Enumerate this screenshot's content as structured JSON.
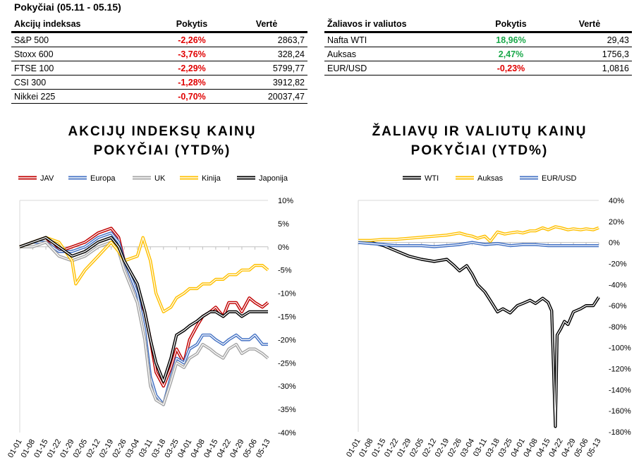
{
  "header": {
    "title": "Pokyčiai (05.11 - 05.15)"
  },
  "table_indices": {
    "columns": [
      "Akcijų indeksas",
      "Pokytis",
      "Vertė"
    ],
    "rows": [
      {
        "name": "S&P 500",
        "change": "-2,26%",
        "value": "2863,7",
        "sign": "neg"
      },
      {
        "name": "Stoxx 600",
        "change": "-3,76%",
        "value": "328,24",
        "sign": "neg"
      },
      {
        "name": "FTSE 100",
        "change": "-2,29%",
        "value": "5799,77",
        "sign": "neg"
      },
      {
        "name": "CSI 300",
        "change": "-1,28%",
        "value": "3912,82",
        "sign": "neg"
      },
      {
        "name": "Nikkei 225",
        "change": "-0,70%",
        "value": "20037,47",
        "sign": "neg"
      }
    ]
  },
  "table_commodities": {
    "columns": [
      "Žaliavos ir valiutos",
      "Pokytis",
      "Vertė"
    ],
    "rows": [
      {
        "name": "Nafta WTI",
        "change": "18,96%",
        "value": "29,43",
        "sign": "pos"
      },
      {
        "name": "Auksas",
        "change": "2,47%",
        "value": "1756,3",
        "sign": "pos"
      },
      {
        "name": "EUR/USD",
        "change": "-0,23%",
        "value": "1,0816",
        "sign": "neg"
      }
    ]
  },
  "chart_data": [
    {
      "type": "line",
      "title": "AKCIJŲ INDEKSŲ KAINŲ POKYČIAI (YTD%)",
      "title_lines": [
        "AKCIJŲ INDEKSŲ KAINŲ",
        "POKYČIAI (YTD%)"
      ],
      "ylim": [
        -40,
        10
      ],
      "yticks": [
        10,
        5,
        0,
        -5,
        -10,
        -15,
        -20,
        -25,
        -30,
        -35,
        -40
      ],
      "ytick_labels": [
        "10%",
        "5%",
        "0%",
        "-5%",
        "-10%",
        "-15%",
        "-20%",
        "-25%",
        "-30%",
        "-35%",
        "-40%"
      ],
      "xlim": [
        0,
        133
      ],
      "xticks": [
        0,
        7,
        14,
        21,
        28,
        35,
        42,
        49,
        56,
        63,
        70,
        77,
        84,
        91,
        98,
        105,
        112,
        119,
        126,
        133
      ],
      "xtick_labels": [
        "01-01",
        "01-08",
        "01-15",
        "01-22",
        "01-29",
        "02-05",
        "02-12",
        "02-19",
        "02-26",
        "03-04",
        "03-11",
        "03-18",
        "03-25",
        "04-01",
        "04-08",
        "04-15",
        "04-22",
        "04-29",
        "05-06",
        "05-13"
      ],
      "legend_position": "top",
      "series": [
        {
          "name": "JAV",
          "color": "#c00000",
          "x": [
            0,
            7,
            14,
            21,
            28,
            35,
            42,
            49,
            53,
            56,
            63,
            67,
            70,
            73,
            77,
            81,
            84,
            88,
            91,
            95,
            98,
            102,
            105,
            109,
            112,
            116,
            119,
            123,
            126,
            130,
            133
          ],
          "y": [
            0,
            1,
            2,
            -1,
            0,
            1,
            3,
            4,
            2,
            -3,
            -10,
            -14,
            -20,
            -27,
            -30,
            -26,
            -22,
            -25,
            -20,
            -17,
            -15,
            -14,
            -13,
            -15,
            -12,
            -12,
            -14,
            -11,
            -12,
            -13,
            -12
          ]
        },
        {
          "name": "Europa",
          "color": "#4472c4",
          "x": [
            0,
            7,
            14,
            21,
            28,
            35,
            42,
            49,
            53,
            56,
            63,
            67,
            70,
            73,
            77,
            81,
            84,
            88,
            91,
            95,
            98,
            102,
            105,
            109,
            112,
            116,
            119,
            123,
            126,
            130,
            133
          ],
          "y": [
            0,
            1,
            1,
            -1,
            -1,
            0,
            2,
            3,
            1,
            -3,
            -10,
            -18,
            -28,
            -32,
            -34,
            -28,
            -24,
            -25,
            -22,
            -21,
            -19,
            -19,
            -20,
            -21,
            -20,
            -19,
            -20,
            -20,
            -19,
            -21,
            -21
          ]
        },
        {
          "name": "UK",
          "color": "#a5a5a5",
          "x": [
            0,
            7,
            14,
            21,
            28,
            35,
            42,
            49,
            53,
            56,
            63,
            67,
            70,
            73,
            77,
            81,
            84,
            88,
            91,
            95,
            98,
            102,
            105,
            109,
            112,
            116,
            119,
            123,
            126,
            130,
            133
          ],
          "y": [
            0,
            0,
            1,
            -2,
            -3,
            -2,
            0,
            1,
            -1,
            -5,
            -12,
            -20,
            -30,
            -33,
            -34,
            -29,
            -25,
            -26,
            -24,
            -23,
            -21,
            -22,
            -23,
            -24,
            -22,
            -21,
            -23,
            -22,
            -22,
            -23,
            -24
          ]
        },
        {
          "name": "Kinija",
          "color": "#ffc000",
          "x": [
            0,
            7,
            14,
            21,
            28,
            30,
            35,
            42,
            49,
            53,
            56,
            63,
            66,
            70,
            73,
            77,
            81,
            84,
            88,
            91,
            95,
            98,
            102,
            105,
            109,
            112,
            116,
            119,
            123,
            126,
            130,
            133
          ],
          "y": [
            0,
            1,
            2,
            1,
            -3,
            -8,
            -5,
            -2,
            1,
            -1,
            -3,
            -2,
            2,
            -3,
            -10,
            -14,
            -13,
            -11,
            -10,
            -9,
            -9,
            -8,
            -8,
            -7,
            -7,
            -6,
            -6,
            -5,
            -5,
            -4,
            -4,
            -5
          ]
        },
        {
          "name": "Japonija",
          "color": "#000000",
          "x": [
            0,
            7,
            14,
            21,
            28,
            35,
            42,
            49,
            53,
            56,
            63,
            67,
            70,
            73,
            77,
            81,
            84,
            88,
            91,
            95,
            98,
            102,
            105,
            109,
            112,
            116,
            119,
            123,
            126,
            130,
            133
          ],
          "y": [
            0,
            1,
            2,
            0,
            -2,
            -1,
            1,
            2,
            0,
            -3,
            -8,
            -14,
            -20,
            -25,
            -29,
            -24,
            -19,
            -18,
            -17,
            -16,
            -15,
            -14,
            -14,
            -15,
            -14,
            -14,
            -15,
            -14,
            -14,
            -14,
            -14
          ]
        }
      ]
    },
    {
      "type": "line",
      "title": "ŽALIAVŲ IR VALIUTŲ KAINŲ POKYČIAI (YTD%)",
      "title_lines": [
        "ŽALIAVŲ IR VALIUTŲ KAINŲ",
        "POKYČIAI (YTD%)"
      ],
      "ylim": [
        -180,
        40
      ],
      "yticks": [
        40,
        20,
        0,
        -20,
        -40,
        -60,
        -80,
        -100,
        -120,
        -140,
        -160,
        -180
      ],
      "ytick_labels": [
        "40%",
        "20%",
        "0%",
        "-20%",
        "-40%",
        "-60%",
        "-80%",
        "-100%",
        "-120%",
        "-140%",
        "-160%",
        "-180%"
      ],
      "xlim": [
        0,
        133
      ],
      "xticks": [
        0,
        7,
        14,
        21,
        28,
        35,
        42,
        49,
        56,
        63,
        70,
        77,
        84,
        91,
        98,
        105,
        112,
        119,
        126,
        133
      ],
      "xtick_labels": [
        "01-01",
        "01-08",
        "01-15",
        "01-22",
        "01-29",
        "02-05",
        "02-12",
        "02-19",
        "02-26",
        "03-04",
        "03-11",
        "03-18",
        "03-25",
        "04-01",
        "04-08",
        "04-15",
        "04-22",
        "04-29",
        "05-06",
        "05-13"
      ],
      "legend_position": "top",
      "series": [
        {
          "name": "WTI",
          "color": "#000000",
          "x": [
            0,
            7,
            14,
            21,
            28,
            35,
            42,
            49,
            53,
            56,
            60,
            63,
            66,
            70,
            73,
            77,
            80,
            84,
            88,
            91,
            95,
            98,
            102,
            105,
            107,
            109,
            110,
            112,
            114,
            116,
            119,
            123,
            126,
            130,
            133
          ],
          "y": [
            0,
            0,
            -3,
            -8,
            -13,
            -16,
            -18,
            -16,
            -22,
            -27,
            -22,
            -30,
            -40,
            -47,
            -55,
            -66,
            -63,
            -67,
            -60,
            -58,
            -55,
            -58,
            -53,
            -57,
            -65,
            -175,
            -88,
            -82,
            -75,
            -78,
            -66,
            -63,
            -60,
            -60,
            -52
          ]
        },
        {
          "name": "Auksas",
          "color": "#ffc000",
          "x": [
            0,
            7,
            14,
            21,
            28,
            35,
            42,
            49,
            56,
            60,
            63,
            66,
            70,
            73,
            77,
            81,
            84,
            88,
            91,
            95,
            98,
            102,
            105,
            109,
            112,
            116,
            119,
            123,
            126,
            130,
            133
          ],
          "y": [
            2,
            2,
            3,
            3,
            4,
            5,
            6,
            7,
            9,
            7,
            6,
            4,
            6,
            1,
            10,
            8,
            9,
            10,
            9,
            11,
            11,
            14,
            12,
            15,
            14,
            12,
            13,
            12,
            13,
            12,
            14
          ]
        },
        {
          "name": "EUR/USD",
          "color": "#4472c4",
          "x": [
            0,
            7,
            14,
            21,
            28,
            35,
            42,
            49,
            56,
            63,
            70,
            77,
            84,
            91,
            98,
            105,
            112,
            119,
            126,
            133
          ],
          "y": [
            0,
            -1,
            -2,
            -3,
            -3,
            -3,
            -4,
            -3,
            -2,
            0,
            -2,
            -1,
            -3,
            -2,
            -2,
            -3,
            -3,
            -3,
            -3,
            -3
          ]
        }
      ]
    }
  ]
}
